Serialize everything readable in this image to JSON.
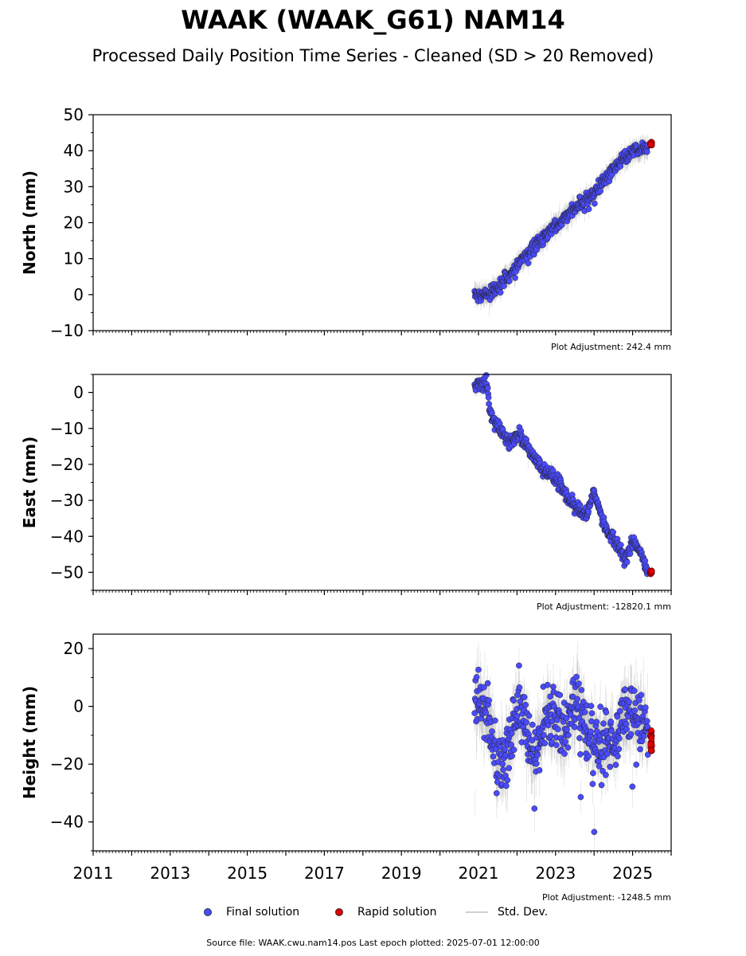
{
  "title": "WAAK (WAAK_G61) NAM14",
  "subtitle": "Processed Daily Position Time Series - Cleaned (SD > 20 Removed)",
  "colors": {
    "final": "#4a4aff",
    "rapid": "#e00000",
    "stddev": "#b0b0b0"
  },
  "legend": {
    "final": "Final solution",
    "rapid": "Rapid solution",
    "stddev": "Std. Dev."
  },
  "source": "Source file: WAAK.cwu.nam14.pos  Last epoch plotted: 2025-07-01 12:00:00",
  "chart_data": [
    {
      "type": "scatter",
      "ylabel": "North (mm)",
      "xlim": [
        2011,
        2026
      ],
      "ylim": [
        -10,
        50
      ],
      "yticks": [
        -10,
        0,
        10,
        20,
        30,
        40,
        50
      ],
      "xticks": [],
      "adjustment": "Plot Adjustment: 242.4 mm",
      "final_trend": {
        "x": [
          2020.9,
          2021.3,
          2022.0,
          2022.5,
          2023.0,
          2023.5,
          2024.0,
          2024.5,
          2025.0,
          2025.4
        ],
        "y": [
          0,
          0,
          8,
          14,
          19,
          24,
          28,
          35,
          40,
          41
        ]
      },
      "rapid": {
        "x": [
          2025.45,
          2025.5
        ],
        "y": [
          41.5,
          42.5
        ]
      }
    },
    {
      "type": "scatter",
      "ylabel": "East (mm)",
      "xlim": [
        2011,
        2026
      ],
      "ylim": [
        -55,
        5
      ],
      "yticks": [
        -50,
        -40,
        -30,
        -20,
        -10,
        0
      ],
      "xticks": [],
      "adjustment": "Plot Adjustment: -12820.1 mm",
      "final_trend": {
        "x": [
          2020.9,
          2021.2,
          2021.3,
          2021.5,
          2021.8,
          2022.1,
          2022.3,
          2022.7,
          2022.9,
          2023.1,
          2023.4,
          2023.8,
          2024.0,
          2024.3,
          2024.6,
          2024.8,
          2025.0,
          2025.2,
          2025.4
        ],
        "y": [
          1,
          3,
          -5,
          -10,
          -14,
          -12,
          -16,
          -22,
          -23,
          -25,
          -31,
          -34,
          -28,
          -38,
          -42,
          -47,
          -41,
          -44,
          -50
        ]
      },
      "rapid": {
        "x": [
          2025.45,
          2025.5
        ],
        "y": [
          -49.5,
          -50.5
        ]
      }
    },
    {
      "type": "scatter",
      "ylabel": "Height (mm)",
      "xlim": [
        2011,
        2026
      ],
      "ylim": [
        -50,
        25
      ],
      "yticks": [
        -40,
        -20,
        0,
        20
      ],
      "xticks": [
        "2011",
        "2013",
        "2015",
        "2017",
        "2019",
        "2021",
        "2023",
        "2025"
      ],
      "adjustment": "Plot Adjustment: -1248.5 mm",
      "final_trend": {
        "x": [
          2020.9,
          2021.2,
          2021.6,
          2022.0,
          2022.4,
          2022.8,
          2023.2,
          2023.6,
          2024.0,
          2024.4,
          2024.8,
          2025.2,
          2025.4
        ],
        "y": [
          5,
          -8,
          -20,
          0,
          -20,
          2,
          -15,
          3,
          -12,
          -18,
          2,
          -5,
          -12
        ]
      },
      "rapid": {
        "x": [
          2025.45,
          2025.5
        ],
        "y": [
          -8,
          -16
        ]
      }
    }
  ]
}
